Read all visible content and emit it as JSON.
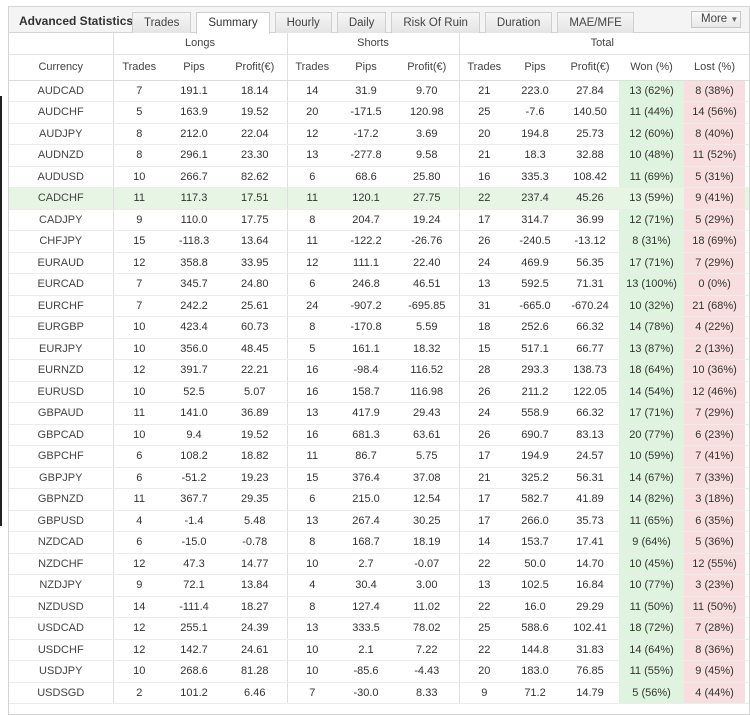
{
  "title": "Advanced Statistics",
  "tabs": [
    "Trades",
    "Summary",
    "Hourly",
    "Daily",
    "Risk Of Ruin",
    "Duration",
    "MAE/MFE"
  ],
  "active_tab": 1,
  "more_label": "More",
  "groups": {
    "longs": "Longs",
    "shorts": "Shorts",
    "total": "Total"
  },
  "columns": {
    "currency": "Currency",
    "longs": [
      "Trades",
      "Pips",
      "Profit(€)"
    ],
    "shorts": [
      "Trades",
      "Pips",
      "Profit(€)"
    ],
    "total": [
      "Trades",
      "Pips",
      "Profit(€)",
      "Won (%)",
      "Lost (%)"
    ]
  },
  "highlight_row": 5,
  "rows": [
    [
      "AUDCAD",
      "7",
      "191.1",
      "18.14",
      "14",
      "31.9",
      "9.70",
      "21",
      "223.0",
      "27.84",
      "13 (62%)",
      "8 (38%)"
    ],
    [
      "AUDCHF",
      "5",
      "163.9",
      "19.52",
      "20",
      "-171.5",
      "120.98",
      "25",
      "-7.6",
      "140.50",
      "11 (44%)",
      "14 (56%)"
    ],
    [
      "AUDJPY",
      "8",
      "212.0",
      "22.04",
      "12",
      "-17.2",
      "3.69",
      "20",
      "194.8",
      "25.73",
      "12 (60%)",
      "8 (40%)"
    ],
    [
      "AUDNZD",
      "8",
      "296.1",
      "23.30",
      "13",
      "-277.8",
      "9.58",
      "21",
      "18.3",
      "32.88",
      "10 (48%)",
      "11 (52%)"
    ],
    [
      "AUDUSD",
      "10",
      "266.7",
      "82.62",
      "6",
      "68.6",
      "25.80",
      "16",
      "335.3",
      "108.42",
      "11 (69%)",
      "5 (31%)"
    ],
    [
      "CADCHF",
      "11",
      "117.3",
      "17.51",
      "11",
      "120.1",
      "27.75",
      "22",
      "237.4",
      "45.26",
      "13 (59%)",
      "9 (41%)"
    ],
    [
      "CADJPY",
      "9",
      "110.0",
      "17.75",
      "8",
      "204.7",
      "19.24",
      "17",
      "314.7",
      "36.99",
      "12 (71%)",
      "5 (29%)"
    ],
    [
      "CHFJPY",
      "15",
      "-118.3",
      "13.64",
      "11",
      "-122.2",
      "-26.76",
      "26",
      "-240.5",
      "-13.12",
      "8 (31%)",
      "18 (69%)"
    ],
    [
      "EURAUD",
      "12",
      "358.8",
      "33.95",
      "12",
      "111.1",
      "22.40",
      "24",
      "469.9",
      "56.35",
      "17 (71%)",
      "7 (29%)"
    ],
    [
      "EURCAD",
      "7",
      "345.7",
      "24.80",
      "6",
      "246.8",
      "46.51",
      "13",
      "592.5",
      "71.31",
      "13 (100%)",
      "0 (0%)"
    ],
    [
      "EURCHF",
      "7",
      "242.2",
      "25.61",
      "24",
      "-907.2",
      "-695.85",
      "31",
      "-665.0",
      "-670.24",
      "10 (32%)",
      "21 (68%)"
    ],
    [
      "EURGBP",
      "10",
      "423.4",
      "60.73",
      "8",
      "-170.8",
      "5.59",
      "18",
      "252.6",
      "66.32",
      "14 (78%)",
      "4 (22%)"
    ],
    [
      "EURJPY",
      "10",
      "356.0",
      "48.45",
      "5",
      "161.1",
      "18.32",
      "15",
      "517.1",
      "66.77",
      "13 (87%)",
      "2 (13%)"
    ],
    [
      "EURNZD",
      "12",
      "391.7",
      "22.21",
      "16",
      "-98.4",
      "116.52",
      "28",
      "293.3",
      "138.73",
      "18 (64%)",
      "10 (36%)"
    ],
    [
      "EURUSD",
      "10",
      "52.5",
      "5.07",
      "16",
      "158.7",
      "116.98",
      "26",
      "211.2",
      "122.05",
      "14 (54%)",
      "12 (46%)"
    ],
    [
      "GBPAUD",
      "11",
      "141.0",
      "36.89",
      "13",
      "417.9",
      "29.43",
      "24",
      "558.9",
      "66.32",
      "17 (71%)",
      "7 (29%)"
    ],
    [
      "GBPCAD",
      "10",
      "9.4",
      "19.52",
      "16",
      "681.3",
      "63.61",
      "26",
      "690.7",
      "83.13",
      "20 (77%)",
      "6 (23%)"
    ],
    [
      "GBPCHF",
      "6",
      "108.2",
      "18.82",
      "11",
      "86.7",
      "5.75",
      "17",
      "194.9",
      "24.57",
      "10 (59%)",
      "7 (41%)"
    ],
    [
      "GBPJPY",
      "6",
      "-51.2",
      "19.23",
      "15",
      "376.4",
      "37.08",
      "21",
      "325.2",
      "56.31",
      "14 (67%)",
      "7 (33%)"
    ],
    [
      "GBPNZD",
      "11",
      "367.7",
      "29.35",
      "6",
      "215.0",
      "12.54",
      "17",
      "582.7",
      "41.89",
      "14 (82%)",
      "3 (18%)"
    ],
    [
      "GBPUSD",
      "4",
      "-1.4",
      "5.48",
      "13",
      "267.4",
      "30.25",
      "17",
      "266.0",
      "35.73",
      "11 (65%)",
      "6 (35%)"
    ],
    [
      "NZDCAD",
      "6",
      "-15.0",
      "-0.78",
      "8",
      "168.7",
      "18.19",
      "14",
      "153.7",
      "17.41",
      "9 (64%)",
      "5 (36%)"
    ],
    [
      "NZDCHF",
      "12",
      "47.3",
      "14.77",
      "10",
      "2.7",
      "-0.07",
      "22",
      "50.0",
      "14.70",
      "10 (45%)",
      "12 (55%)"
    ],
    [
      "NZDJPY",
      "9",
      "72.1",
      "13.84",
      "4",
      "30.4",
      "3.00",
      "13",
      "102.5",
      "16.84",
      "10 (77%)",
      "3 (23%)"
    ],
    [
      "NZDUSD",
      "14",
      "-111.4",
      "18.27",
      "8",
      "127.4",
      "11.02",
      "22",
      "16.0",
      "29.29",
      "11 (50%)",
      "11 (50%)"
    ],
    [
      "USDCAD",
      "12",
      "255.1",
      "24.39",
      "13",
      "333.5",
      "78.02",
      "25",
      "588.6",
      "102.41",
      "18 (72%)",
      "7 (28%)"
    ],
    [
      "USDCHF",
      "12",
      "142.7",
      "24.61",
      "10",
      "2.1",
      "7.22",
      "22",
      "144.8",
      "31.83",
      "14 (64%)",
      "8 (36%)"
    ],
    [
      "USDJPY",
      "10",
      "268.6",
      "81.28",
      "10",
      "-85.6",
      "-4.43",
      "20",
      "183.0",
      "76.85",
      "11 (55%)",
      "9 (45%)"
    ],
    [
      "USDSGD",
      "2",
      "101.2",
      "6.46",
      "7",
      "-30.0",
      "8.33",
      "9",
      "71.2",
      "14.79",
      "5 (56%)",
      "4 (44%)"
    ]
  ]
}
